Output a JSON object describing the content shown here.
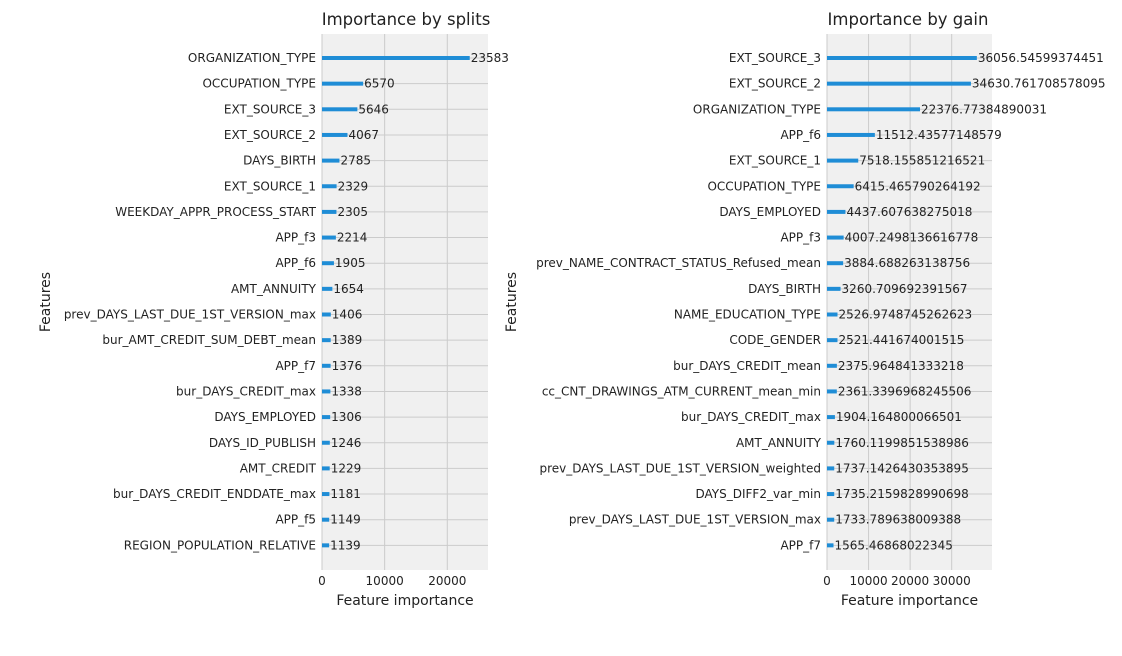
{
  "chart_data": [
    {
      "type": "bar",
      "orientation": "horizontal",
      "title": "Importance by splits",
      "xlabel": "Feature importance",
      "ylabel": "Features",
      "xlim": [
        0,
        26500
      ],
      "xticks": [
        0,
        10000,
        20000
      ],
      "xtick_labels": [
        "0",
        "10000",
        "20000"
      ],
      "grid": true,
      "categories": [
        "ORGANIZATION_TYPE",
        "OCCUPATION_TYPE",
        "EXT_SOURCE_3",
        "EXT_SOURCE_2",
        "DAYS_BIRTH",
        "EXT_SOURCE_1",
        "WEEKDAY_APPR_PROCESS_START",
        "APP_f3",
        "APP_f6",
        "AMT_ANNUITY",
        "prev_DAYS_LAST_DUE_1ST_VERSION_max",
        "bur_AMT_CREDIT_SUM_DEBT_mean",
        "APP_f7",
        "bur_DAYS_CREDIT_max",
        "DAYS_EMPLOYED",
        "DAYS_ID_PUBLISH",
        "AMT_CREDIT",
        "bur_DAYS_CREDIT_ENDDATE_max",
        "APP_f5",
        "REGION_POPULATION_RELATIVE"
      ],
      "values": [
        23583,
        6570,
        5646,
        4067,
        2785,
        2329,
        2305,
        2214,
        1905,
        1654,
        1406,
        1389,
        1376,
        1338,
        1306,
        1246,
        1229,
        1181,
        1149,
        1139
      ],
      "value_labels": [
        "23583",
        "6570",
        "5646",
        "4067",
        "2785",
        "2329",
        "2305",
        "2214",
        "1905",
        "1654",
        "1406",
        "1389",
        "1376",
        "1338",
        "1306",
        "1246",
        "1229",
        "1181",
        "1149",
        "1139"
      ],
      "bar_color": "#1f8dd6"
    },
    {
      "type": "bar",
      "orientation": "horizontal",
      "title": "Importance by gain",
      "xlabel": "Feature importance",
      "ylabel": "Features",
      "xlim": [
        0,
        39700
      ],
      "xticks": [
        0,
        10000,
        20000,
        30000
      ],
      "xtick_labels": [
        "0",
        "10000",
        "20000",
        "30000"
      ],
      "grid": true,
      "categories": [
        "EXT_SOURCE_3",
        "EXT_SOURCE_2",
        "ORGANIZATION_TYPE",
        "APP_f6",
        "EXT_SOURCE_1",
        "OCCUPATION_TYPE",
        "DAYS_EMPLOYED",
        "APP_f3",
        "prev_NAME_CONTRACT_STATUS_Refused_mean",
        "DAYS_BIRTH",
        "NAME_EDUCATION_TYPE",
        "CODE_GENDER",
        "bur_DAYS_CREDIT_mean",
        "cc_CNT_DRAWINGS_ATM_CURRENT_mean_min",
        "bur_DAYS_CREDIT_max",
        "AMT_ANNUITY",
        "prev_DAYS_LAST_DUE_1ST_VERSION_weighted",
        "DAYS_DIFF2_var_min",
        "prev_DAYS_LAST_DUE_1ST_VERSION_max",
        "APP_f7"
      ],
      "values": [
        36056.54599374451,
        34630.761708578095,
        22376.77384890031,
        11512.43577148579,
        7518.155851216521,
        6415.465790264192,
        4437.607638275018,
        4007.2498136616778,
        3884.688263138756,
        3260.709692391567,
        2526.9748745262623,
        2521.441674001515,
        2375.964841333218,
        2361.3396968245506,
        1904.164800066501,
        1760.1199851538986,
        1737.1426430353895,
        1735.2159828990698,
        1733.789638009388,
        1565.46868022345
      ],
      "value_labels": [
        "36056.54599374451",
        "34630.761708578095",
        "22376.77384890031",
        "11512.43577148579",
        "7518.155851216521",
        "6415.465790264192",
        "4437.607638275018",
        "4007.2498136616778",
        "3884.688263138756",
        "3260.709692391567",
        "2526.9748745262623",
        "2521.441674001515",
        "2375.964841333218",
        "2361.3396968245506",
        "1904.164800066501",
        "1760.1199851538986",
        "1737.1426430353895",
        "1735.2159828990698",
        "1733.789638009388",
        "1565.46868022345"
      ],
      "bar_color": "#1f8dd6"
    }
  ]
}
